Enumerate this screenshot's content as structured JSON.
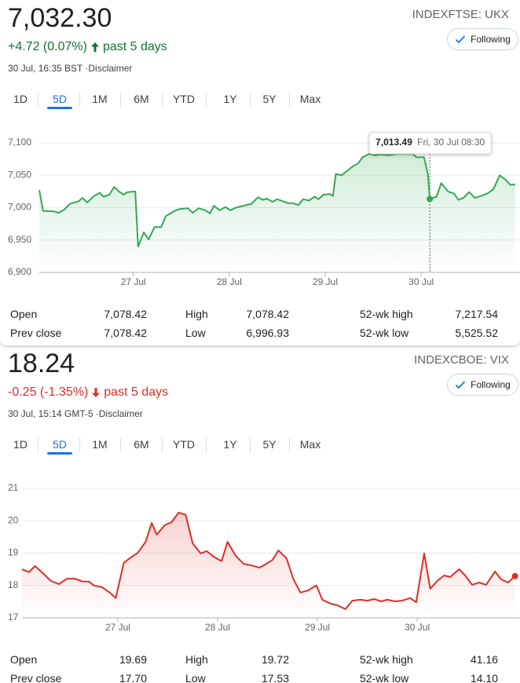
{
  "panels": [
    {
      "price": "7,032.30",
      "change": "+4.72 (0.07%)",
      "period": "past 5 days",
      "trend": "up",
      "color": "#137333",
      "timestamp": "30 Jul, 16:35 BST",
      "disclaimer": "·Disclaimer",
      "ticker": "INDEXFTSE: UKX",
      "follow": "Following",
      "tabs": [
        "1D",
        "5D",
        "1M",
        "6M",
        "YTD",
        "1Y",
        "5Y",
        "Max"
      ],
      "selected_tab": 1,
      "stats": [
        {
          "label": "Open",
          "value": "7,078.42"
        },
        {
          "label": "High",
          "value": "7,078.42"
        },
        {
          "label": "52-wk high",
          "value": "7,217.54"
        },
        {
          "label": "Prev close",
          "value": "7,078.42"
        },
        {
          "label": "Low",
          "value": "6,996.93"
        },
        {
          "label": "52-wk low",
          "value": "5,525.52"
        }
      ]
    },
    {
      "price": "18.24",
      "change": "-0.25 (-1.35%)",
      "period": "past 5 days",
      "trend": "down",
      "color": "#d93025",
      "timestamp": "30 Jul, 15:14 GMT-5",
      "disclaimer": "·Disclaimer",
      "ticker": "INDEXCBOE: VIX",
      "follow": "Following",
      "tabs": [
        "1D",
        "5D",
        "1M",
        "6M",
        "YTD",
        "1Y",
        "5Y",
        "Max"
      ],
      "selected_tab": 1,
      "stats": [
        {
          "label": "Open",
          "value": "19.69"
        },
        {
          "label": "High",
          "value": "19.72"
        },
        {
          "label": "52-wk high",
          "value": "41.16"
        },
        {
          "label": "Prev close",
          "value": "17.70"
        },
        {
          "label": "Low",
          "value": "17.53"
        },
        {
          "label": "52-wk low",
          "value": "14.10"
        }
      ]
    }
  ],
  "chart_data": [
    {
      "type": "line",
      "color": "#34a853",
      "grid": true,
      "x": [
        26.02,
        26.06,
        26.18,
        26.22,
        26.28,
        26.34,
        26.43,
        26.47,
        26.52,
        26.59,
        26.65,
        26.69,
        26.75,
        26.8,
        26.85,
        26.9,
        26.94,
        27.02,
        27.05,
        27.11,
        27.16,
        27.22,
        27.29,
        27.34,
        27.43,
        27.49,
        27.57,
        27.62,
        27.68,
        27.75,
        27.8,
        27.84,
        27.9,
        27.96,
        28.01,
        28.07,
        28.15,
        28.23,
        28.3,
        28.35,
        28.39,
        28.45,
        28.5,
        28.56,
        28.61,
        28.66,
        28.72,
        28.77,
        28.83,
        28.89,
        28.93,
        28.98,
        29.05,
        29.08,
        29.11,
        29.17,
        29.23,
        29.28,
        29.34,
        29.39,
        29.46,
        29.52,
        29.58,
        29.66,
        29.75,
        29.83,
        29.91,
        29.95,
        30.03,
        30.07,
        30.09,
        30.16,
        30.21,
        30.28,
        30.34,
        30.39,
        30.44,
        30.5,
        30.56,
        30.62,
        30.69,
        30.75,
        30.82,
        30.88,
        30.93,
        30.98
      ],
      "values": [
        7027,
        6995,
        6994,
        6992,
        6997,
        7006,
        7010,
        7015,
        7008,
        7018,
        7023,
        7017,
        7020,
        7032,
        7025,
        7020,
        7024,
        7025,
        6940,
        6962,
        6951,
        6970,
        6970,
        6987,
        6995,
        6998,
        6999,
        6992,
        6999,
        6996,
        6991,
        7003,
        6996,
        7001,
        6996,
        7000,
        7003,
        7006,
        7016,
        7012,
        7014,
        7009,
        7013,
        7010,
        7007,
        7007,
        7004,
        7013,
        7011,
        7017,
        7013,
        7020,
        7021,
        7018,
        7052,
        7050,
        7057,
        7063,
        7068,
        7078,
        7083,
        7081,
        7082,
        7081,
        7083,
        7083,
        7083,
        7078,
        7078,
        7052,
        7013.49,
        7017,
        7038,
        7025,
        7022,
        7012,
        7015,
        7024,
        7015,
        7018,
        7022,
        7028,
        7050,
        7043,
        7035,
        7036
      ],
      "xlim": [
        26.02,
        31.03
      ],
      "ylim": [
        6900,
        7100
      ],
      "xticks": [
        {
          "value": 27,
          "label": "27 Jul"
        },
        {
          "value": 28,
          "label": "28 Jul"
        },
        {
          "value": 29,
          "label": "29 Jul"
        },
        {
          "value": 30,
          "label": "30 Jul"
        }
      ],
      "yticks": [
        {
          "value": 6900,
          "label": "6,900"
        },
        {
          "value": 6950,
          "label": "6,950"
        },
        {
          "value": 7000,
          "label": "7,000"
        },
        {
          "value": 7050,
          "label": "7,050"
        },
        {
          "value": 7100,
          "label": "7,100"
        }
      ],
      "tooltip": {
        "x": 30.09,
        "value": 7013.49,
        "label": "7,013.49",
        "date": "Fri, 30 Jul 08:30"
      }
    },
    {
      "type": "line",
      "color": "#d93025",
      "grid": true,
      "end_marker": true,
      "x": [
        26.04,
        26.11,
        26.17,
        26.25,
        26.33,
        26.41,
        26.49,
        26.57,
        26.65,
        26.71,
        26.76,
        26.84,
        26.92,
        26.98,
        27.06,
        27.12,
        27.2,
        27.28,
        27.34,
        27.39,
        27.47,
        27.54,
        27.61,
        27.68,
        27.75,
        27.83,
        27.89,
        27.97,
        28.04,
        28.1,
        28.18,
        28.26,
        28.34,
        28.42,
        28.48,
        28.55,
        28.61,
        28.69,
        28.76,
        28.83,
        28.91,
        28.99,
        29.05,
        29.13,
        29.2,
        29.28,
        29.35,
        29.43,
        29.5,
        29.57,
        29.64,
        29.7,
        29.78,
        29.85,
        29.93,
        29.99,
        30.07,
        30.13,
        30.2,
        30.27,
        30.33,
        30.42,
        30.48,
        30.55,
        30.62,
        30.69,
        30.78,
        30.84,
        30.91,
        30.98
      ],
      "values": [
        18.5,
        18.41,
        18.6,
        18.38,
        18.14,
        18.04,
        18.21,
        18.21,
        18.12,
        18.12,
        18.0,
        17.95,
        17.78,
        17.61,
        18.7,
        18.84,
        19.01,
        19.35,
        19.93,
        19.57,
        19.86,
        19.96,
        20.25,
        20.18,
        19.3,
        18.99,
        19.06,
        18.87,
        18.75,
        19.35,
        18.92,
        18.67,
        18.62,
        18.55,
        18.65,
        18.79,
        19.08,
        18.84,
        18.19,
        17.78,
        17.85,
        18.0,
        17.56,
        17.44,
        17.39,
        17.27,
        17.53,
        17.56,
        17.53,
        17.58,
        17.51,
        17.56,
        17.51,
        17.53,
        17.61,
        17.48,
        18.99,
        17.9,
        18.14,
        18.31,
        18.26,
        18.5,
        18.31,
        18.02,
        18.09,
        18.02,
        18.43,
        18.19,
        18.09,
        18.29
      ],
      "xlim": [
        26.04,
        31.03
      ],
      "ylim": [
        17,
        21
      ],
      "xticks": [
        {
          "value": 27,
          "label": "27 Jul"
        },
        {
          "value": 28,
          "label": "28 Jul"
        },
        {
          "value": 29,
          "label": "29 Jul"
        },
        {
          "value": 30,
          "label": "30 Jul"
        }
      ],
      "yticks": [
        17,
        18,
        19,
        20,
        21
      ]
    }
  ]
}
